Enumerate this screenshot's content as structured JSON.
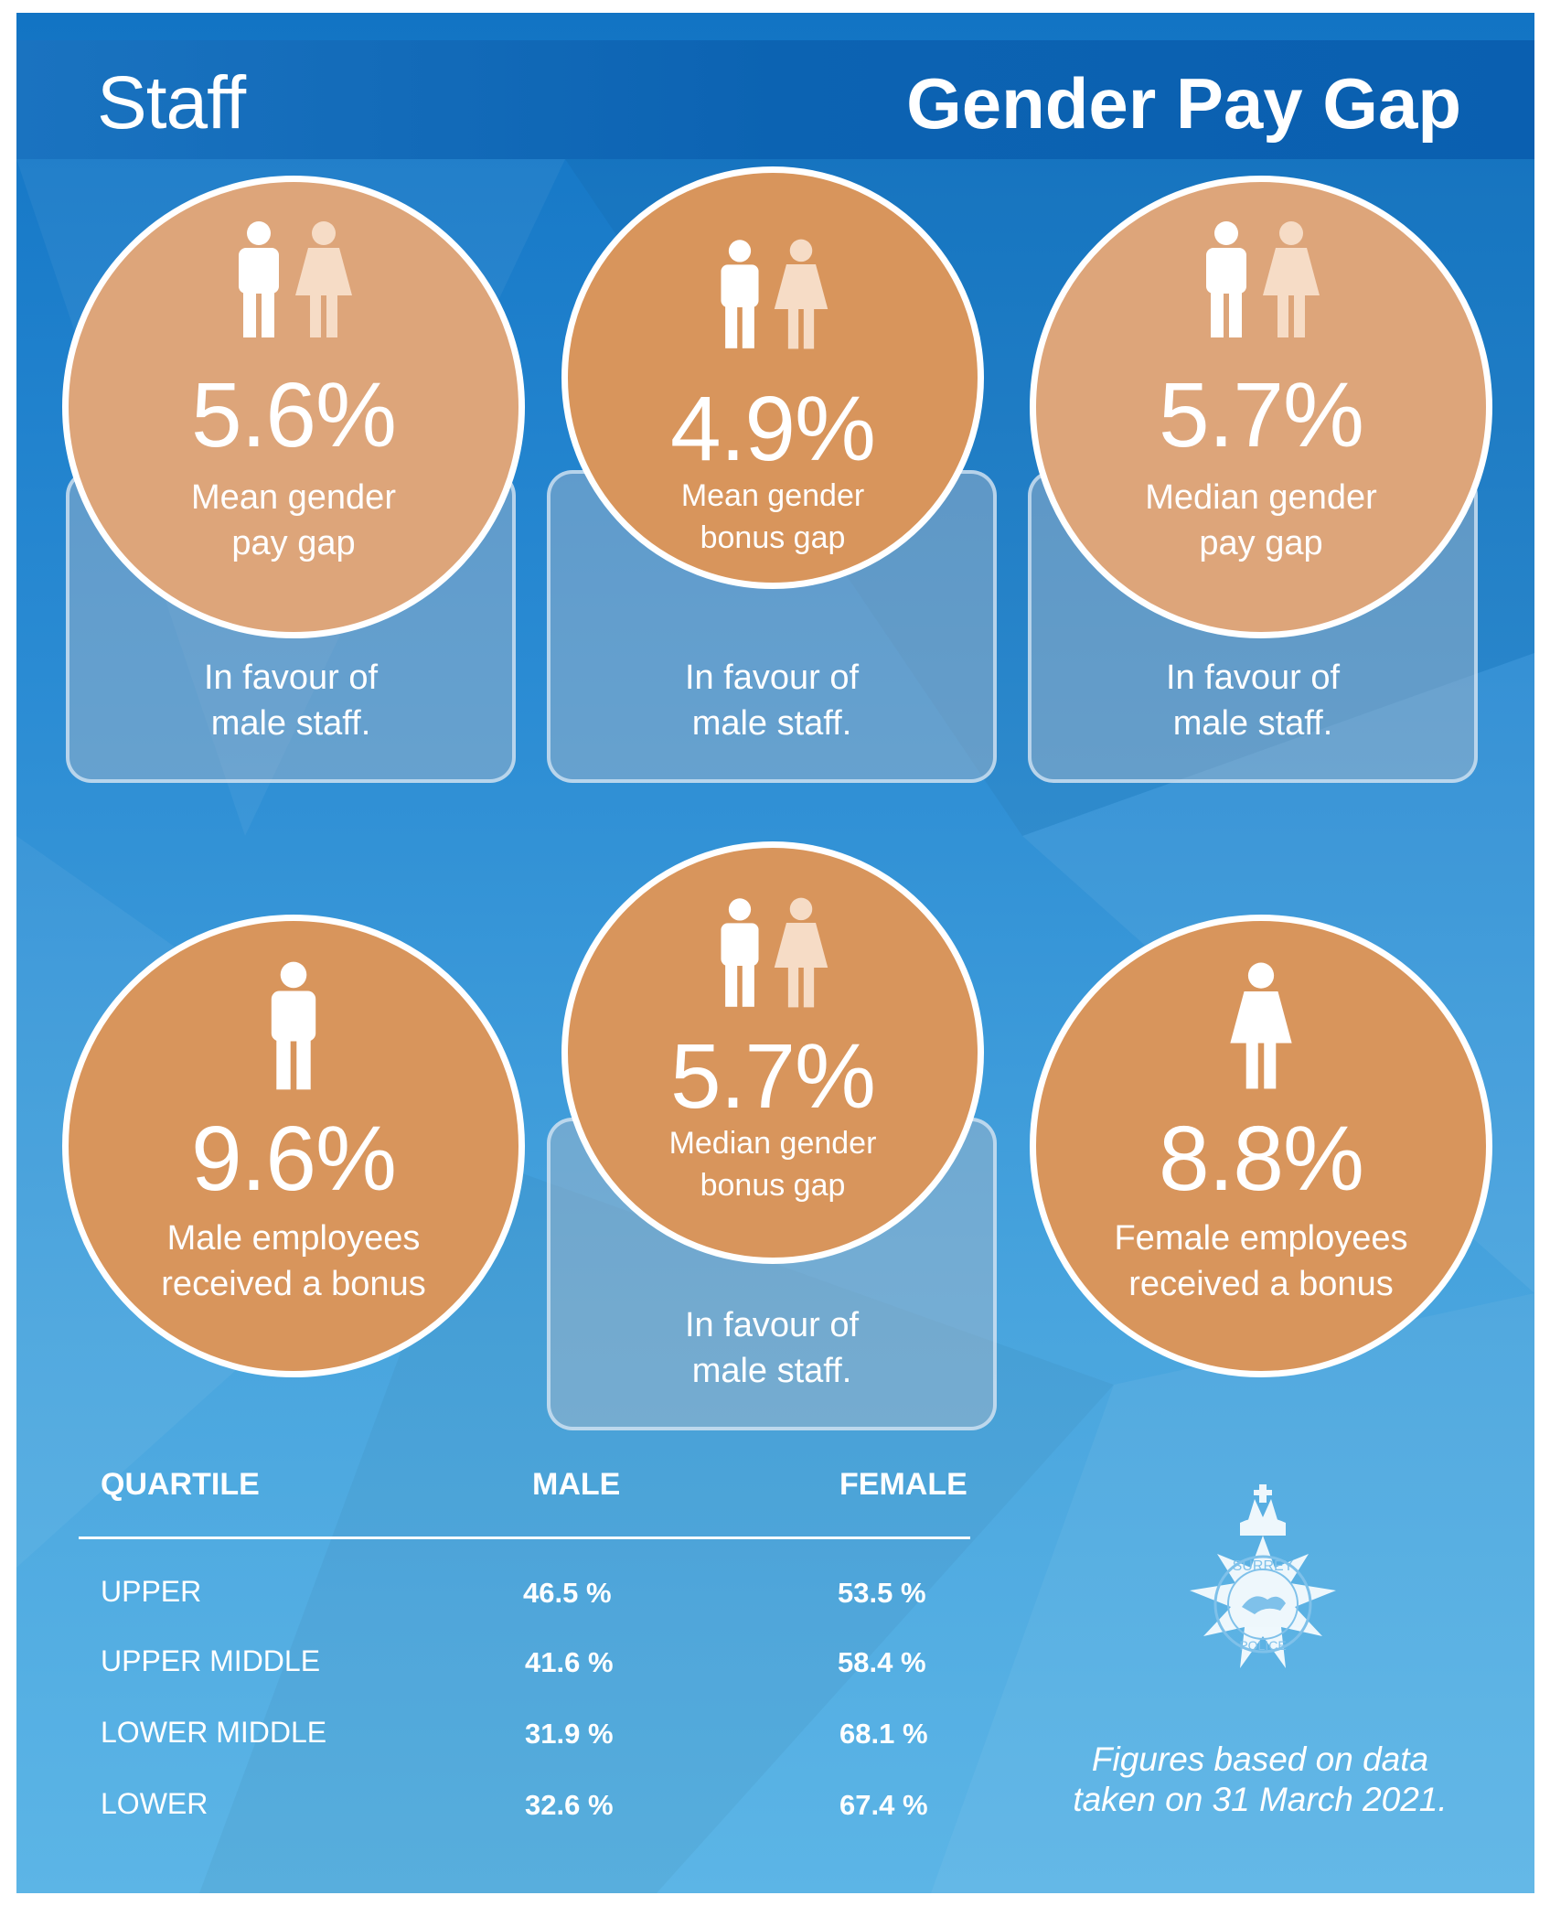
{
  "header": {
    "section": "Staff",
    "title": "Gender Pay Gap"
  },
  "colors": {
    "circle_light": "#dda57a",
    "circle_dark": "#d8955c",
    "background_blue": "#1274c4"
  },
  "metrics": [
    {
      "value": "5.6%",
      "label_line1": "Mean gender",
      "label_line2": "pay gap",
      "note_line1": "In favour of",
      "note_line2": "male staff.",
      "icon": "male-female-icons"
    },
    {
      "value": "4.9%",
      "label_line1": "Mean gender",
      "label_line2": "bonus gap",
      "note_line1": "In favour of",
      "note_line2": "male staff.",
      "icon": "male-female-icons"
    },
    {
      "value": "5.7%",
      "label_line1": "Median gender",
      "label_line2": "pay gap",
      "note_line1": "In favour of",
      "note_line2": "male staff.",
      "icon": "male-female-icons"
    },
    {
      "value": "9.6%",
      "label_line1": "Male employees",
      "label_line2": "received a bonus",
      "icon": "male-icon"
    },
    {
      "value": "5.7%",
      "label_line1": "Median gender",
      "label_line2": "bonus gap",
      "note_line1": "In favour of",
      "note_line2": "male staff.",
      "icon": "male-female-icons"
    },
    {
      "value": "8.8%",
      "label_line1": "Female employees",
      "label_line2": "received a bonus",
      "icon": "female-icon"
    }
  ],
  "quartile_table": {
    "headers": [
      "QUARTILE",
      "MALE",
      "FEMALE"
    ],
    "rows": [
      {
        "quartile": "UPPER",
        "male": "46.5 %",
        "female": "53.5 %"
      },
      {
        "quartile": "UPPER MIDDLE",
        "male": "41.6 %",
        "female": "58.4 %"
      },
      {
        "quartile": "LOWER MIDDLE",
        "male": "31.9 %",
        "female": "68.1 %"
      },
      {
        "quartile": "LOWER",
        "male": "32.6 %",
        "female": "67.4 %"
      }
    ]
  },
  "crest": {
    "top_text": "SURREY",
    "bottom_text": "POLICE"
  },
  "footnote": {
    "line1": "Figures based on data",
    "line2": "taken on 31 March 2021."
  }
}
